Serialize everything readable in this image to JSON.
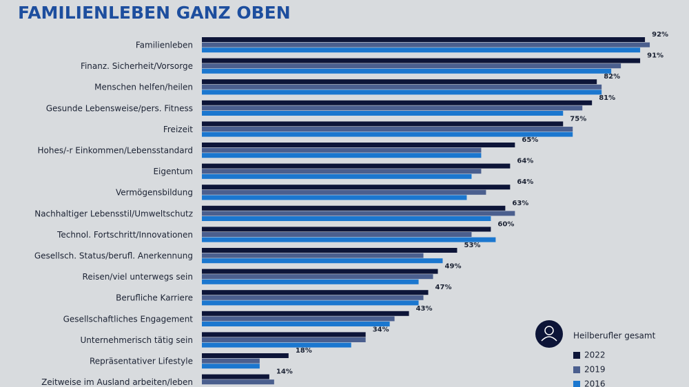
{
  "chart_data": {
    "type": "hbar",
    "title": "FAMILIENLEBEN GANZ OBEN",
    "categories": [
      "Familienleben",
      "Finanz. Sicherheit/Vorsorge",
      "Menschen helfen/heilen",
      "Gesunde Lebensweise/pers. Fitness",
      "Freizeit",
      "Hohes/-r Einkommen/Lebensstandard",
      "Eigentum",
      "Vermögensbildung",
      "Nachhaltiger Lebensstil/Umweltschutz",
      "Technol. Fortschritt/Innovationen",
      "Gesellsch. Status/berufl. Anerkennung",
      "Reisen/viel unterwegs sein",
      "Berufliche Karriere",
      "Gesellschaftliches Engagement",
      "Unternehmerisch tätig sein",
      "Repräsentativer Lifestyle",
      "Zeitweise im Ausland arbeiten/leben"
    ],
    "legend_title": "Heilberufler gesamt",
    "xlim": [
      0,
      100
    ],
    "series": [
      {
        "name": "2022",
        "color": "#0d1538",
        "values": [
          92,
          91,
          82,
          81,
          75,
          65,
          64,
          64,
          63,
          60,
          53,
          49,
          47,
          43,
          34,
          18,
          14
        ],
        "value_labels": [
          "92%",
          "91%",
          "82%",
          "81%",
          "75%",
          "65%",
          "64%",
          "64%",
          "63%",
          "60%",
          "53%",
          "49%",
          "47%",
          "43%",
          "34%",
          "18%",
          "14%"
        ]
      },
      {
        "name": "2019",
        "color": "#4b5f8e",
        "values": [
          93,
          87,
          83,
          79,
          77,
          58,
          58,
          59,
          65,
          56,
          46,
          48,
          46,
          40,
          34,
          12,
          15
        ]
      },
      {
        "name": "2016",
        "color": "#1b77cf",
        "values": [
          91,
          85,
          83,
          75,
          77,
          58,
          56,
          55,
          60,
          61,
          50,
          45,
          45,
          39,
          31,
          12,
          null
        ]
      }
    ]
  }
}
